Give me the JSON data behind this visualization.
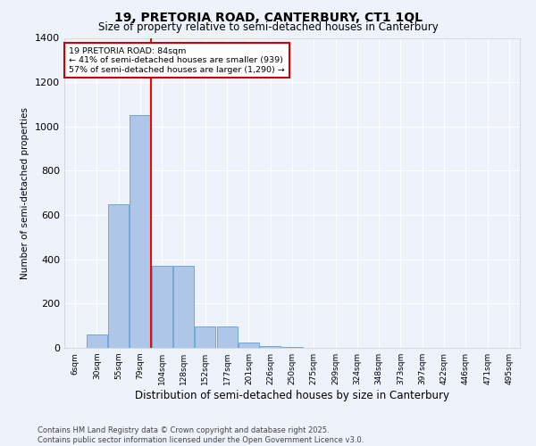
{
  "title_line1": "19, PRETORIA ROAD, CANTERBURY, CT1 1QL",
  "title_line2": "Size of property relative to semi-detached houses in Canterbury",
  "xlabel": "Distribution of semi-detached houses by size in Canterbury",
  "ylabel": "Number of semi-detached properties",
  "footer_line1": "Contains HM Land Registry data © Crown copyright and database right 2025.",
  "footer_line2": "Contains public sector information licensed under the Open Government Licence v3.0.",
  "categories": [
    "6sqm",
    "30sqm",
    "55sqm",
    "79sqm",
    "104sqm",
    "128sqm",
    "152sqm",
    "177sqm",
    "201sqm",
    "226sqm",
    "250sqm",
    "275sqm",
    "299sqm",
    "324sqm",
    "348sqm",
    "373sqm",
    "397sqm",
    "422sqm",
    "446sqm",
    "471sqm",
    "495sqm"
  ],
  "values": [
    0,
    60,
    650,
    1050,
    370,
    370,
    95,
    95,
    25,
    10,
    5,
    2,
    0,
    0,
    0,
    0,
    0,
    0,
    0,
    0,
    0
  ],
  "bar_color": "#aec6e8",
  "bar_edge_color": "#6fa8d4",
  "background_color": "#eef2fb",
  "grid_color": "#ffffff",
  "annotation_text": "19 PRETORIA ROAD: 84sqm\n← 41% of semi-detached houses are smaller (939)\n57% of semi-detached houses are larger (1,290) →",
  "annotation_box_color": "#ffffff",
  "annotation_box_edge": "#cc0000",
  "ylim": [
    0,
    1400
  ],
  "yticks": [
    0,
    200,
    400,
    600,
    800,
    1000,
    1200,
    1400
  ]
}
